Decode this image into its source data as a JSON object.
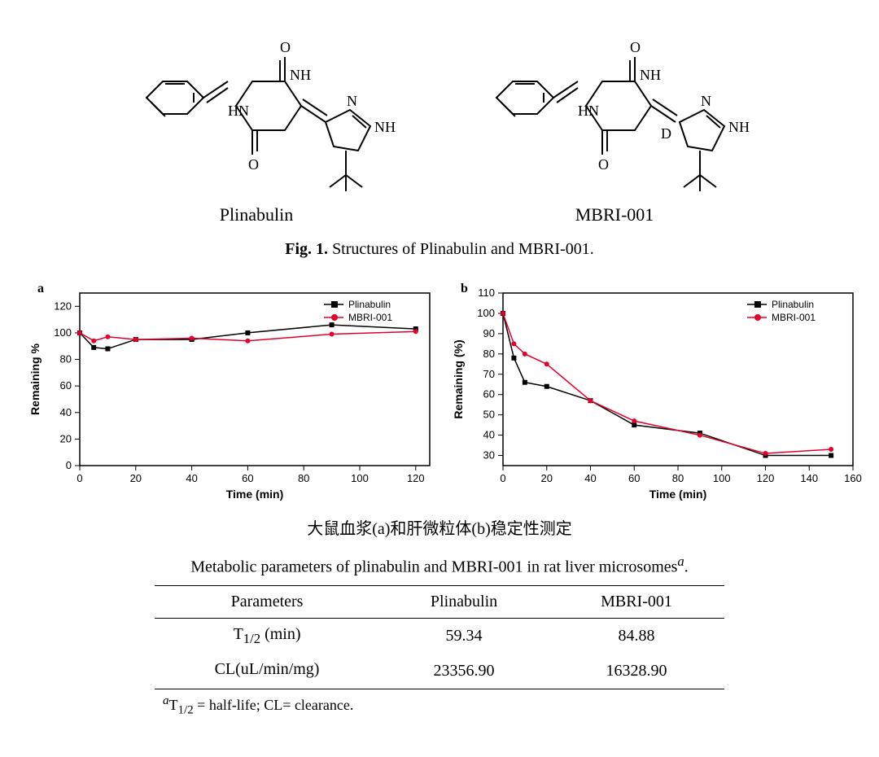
{
  "structures": {
    "left": {
      "label": "Plinabulin",
      "deuterium": false
    },
    "right": {
      "label": "MBRI-001",
      "deuterium": true
    }
  },
  "fig1_caption_bold": "Fig. 1.",
  "fig1_caption_rest": " Structures of Plinabulin and MBRI-001.",
  "chart_a": {
    "panel": "a",
    "type": "line-scatter",
    "xlabel": "Time (min)",
    "ylabel": "Remaining %",
    "label_fontsize": 14,
    "xlim": [
      0,
      125
    ],
    "ylim": [
      0,
      130
    ],
    "xticks": [
      0,
      20,
      40,
      60,
      80,
      100,
      120
    ],
    "yticks": [
      0,
      20,
      40,
      60,
      80,
      100,
      120
    ],
    "grid": false,
    "axis_color": "#000000",
    "background_color": "#ffffff",
    "legend": {
      "position": "top-right",
      "items": [
        "Plinabulin",
        "MBRI-001"
      ]
    },
    "series": [
      {
        "name": "Plinabulin",
        "marker": "square",
        "marker_size": 6,
        "line_width": 1.5,
        "color": "#000000",
        "x": [
          0,
          5,
          10,
          20,
          40,
          60,
          90,
          120
        ],
        "y": [
          100,
          89,
          88,
          95,
          95,
          100,
          106,
          103
        ]
      },
      {
        "name": "MBRI-001",
        "marker": "circle",
        "marker_size": 6,
        "line_width": 1.5,
        "color": "#e4002b",
        "x": [
          0,
          5,
          10,
          20,
          40,
          60,
          90,
          120
        ],
        "y": [
          100,
          94,
          97,
          95,
          96,
          94,
          99,
          101
        ]
      }
    ]
  },
  "chart_b": {
    "panel": "b",
    "type": "line-scatter",
    "xlabel": "Time (min)",
    "ylabel": "Remaining (%)",
    "label_fontsize": 14,
    "xlim": [
      0,
      160
    ],
    "ylim": [
      25,
      110
    ],
    "xticks": [
      0,
      20,
      40,
      60,
      80,
      100,
      120,
      140,
      160
    ],
    "yticks": [
      30,
      40,
      50,
      60,
      70,
      80,
      90,
      100,
      110
    ],
    "grid": false,
    "axis_color": "#000000",
    "background_color": "#ffffff",
    "legend": {
      "position": "top-right",
      "items": [
        "Plinabulin",
        "MBRI-001"
      ]
    },
    "series": [
      {
        "name": "Plinabulin",
        "marker": "square",
        "marker_size": 6,
        "line_width": 1.5,
        "color": "#000000",
        "x": [
          0,
          5,
          10,
          20,
          40,
          60,
          90,
          120,
          150
        ],
        "y": [
          100,
          78,
          66,
          64,
          57,
          45,
          41,
          30,
          30
        ]
      },
      {
        "name": "MBRI-001",
        "marker": "circle",
        "marker_size": 6,
        "line_width": 1.5,
        "color": "#e4002b",
        "x": [
          0,
          5,
          10,
          20,
          40,
          60,
          90,
          120,
          150
        ],
        "y": [
          100,
          85,
          80,
          75,
          57,
          47,
          40,
          31,
          33
        ]
      }
    ]
  },
  "caption_cn": "大鼠血浆(a)和肝微粒体(b)稳定性测定",
  "table": {
    "title_before_sup": "Metabolic parameters of plinabulin and MBRI-001 in rat liver microsomes",
    "title_sup": "a",
    "title_after": ".",
    "columns": [
      "Parameters",
      "Plinabulin",
      "MBRI-001"
    ],
    "rows": [
      {
        "param_before": "T",
        "param_sub": "1/2",
        "param_after": " (min)",
        "c2": "59.34",
        "c3": "84.88"
      },
      {
        "param_before": "CL(uL/min/mg)",
        "param_sub": "",
        "param_after": "",
        "c2": "23356.90",
        "c3": "16328.90"
      }
    ],
    "footnote_sup": "a",
    "footnote_t_before": "T",
    "footnote_t_sub": "1/2",
    "footnote_rest": " = half-life; CL= clearance."
  }
}
